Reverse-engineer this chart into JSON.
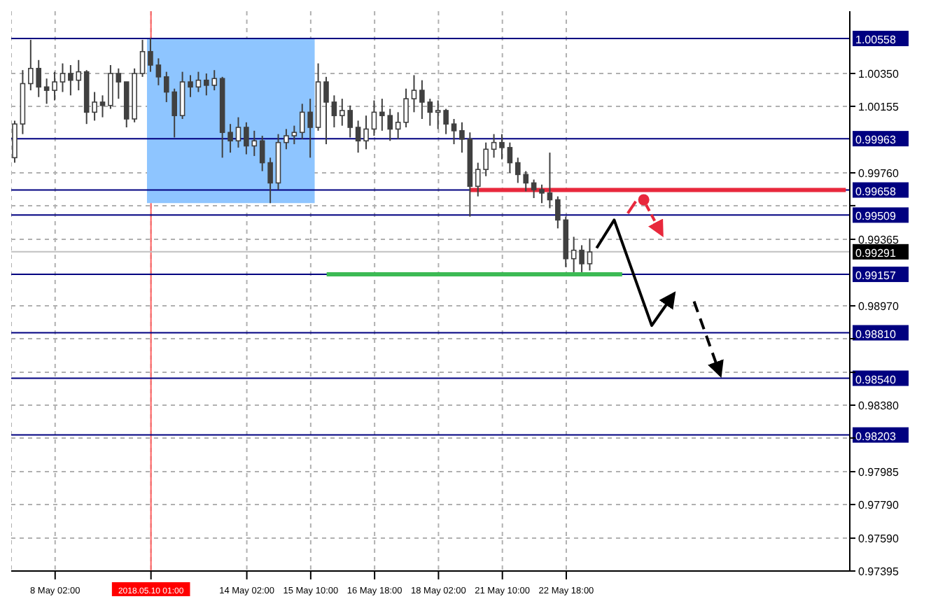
{
  "chart_data": {
    "type": "candlestick",
    "color": "#404040",
    "categories": [
      null,
      null,
      null,
      null,
      null,
      "8 May 02:00",
      null,
      null,
      null,
      null,
      null,
      null,
      null,
      null,
      null,
      null,
      null,
      "2018.05.10 01:00",
      null,
      null,
      null,
      null,
      null,
      null,
      null,
      null,
      null,
      null,
      null,
      "14 May 02:00",
      null,
      null,
      null,
      null,
      null,
      null,
      null,
      "15 May 10:00",
      null,
      null,
      null,
      null,
      null,
      null,
      null,
      "16 May 18:00",
      null,
      null,
      null,
      null,
      null,
      null,
      null,
      "18 May 02:00",
      null,
      null,
      null,
      null,
      null,
      null,
      null,
      "21 May 10:00",
      null,
      null,
      null,
      null,
      null,
      null,
      null,
      "22 May 18:00",
      null,
      null,
      null,
      null,
      null,
      null,
      null,
      null,
      null,
      null,
      null,
      null,
      null,
      null,
      null,
      null,
      null,
      null,
      null,
      null,
      null,
      null,
      null,
      null,
      null,
      null,
      null,
      null,
      null,
      null,
      null,
      null,
      null,
      null,
      null
    ],
    "ohlc": [
      [
        0.9985,
        1.0007,
        0.9982,
        1.0005
      ],
      [
        1.0005,
        1.0037,
        0.9999,
        1.0029
      ],
      [
        1.0029,
        1.0055,
        1.0025,
        1.0038
      ],
      [
        1.0038,
        1.0043,
        1.0021,
        1.0027
      ],
      [
        1.0027,
        1.0032,
        1.0017,
        1.0025
      ],
      [
        1.0025,
        1.0036,
        1.0019,
        1.003
      ],
      [
        1.003,
        1.0041,
        1.0024,
        1.0035
      ],
      [
        1.0035,
        1.004,
        1.0022,
        1.0031
      ],
      [
        1.0031,
        1.0043,
        1.0025,
        1.0036
      ],
      [
        1.0036,
        1.0037,
        1.0005,
        1.0012
      ],
      [
        1.0012,
        1.0024,
        1.0007,
        1.0018
      ],
      [
        1.0018,
        1.0022,
        1.0009,
        1.0016
      ],
      [
        1.0016,
        1.004,
        1.0014,
        1.0035
      ],
      [
        1.0035,
        1.0038,
        1.002,
        1.003
      ],
      [
        1.003,
        1.003,
        1.0003,
        1.0008
      ],
      [
        1.0008,
        1.0038,
        1.0006,
        1.0035
      ],
      [
        1.0035,
        1.0055,
        1.0033,
        1.0048
      ],
      [
        1.0048,
        1.0056,
        1.0036,
        1.004
      ],
      [
        1.004,
        1.0044,
        1.0028,
        1.0033
      ],
      [
        1.0033,
        1.0036,
        1.0018,
        1.0024
      ],
      [
        1.0024,
        1.0026,
        0.9997,
        1.001
      ],
      [
        1.001,
        1.0036,
        1.0008,
        1.003
      ],
      [
        1.003,
        1.0034,
        1.0021,
        1.0027
      ],
      [
        1.0027,
        1.0036,
        1.0024,
        1.0031
      ],
      [
        1.0031,
        1.0035,
        1.0022,
        1.0028
      ],
      [
        1.0028,
        1.0037,
        1.0025,
        1.0032
      ],
      [
        1.0032,
        1.0033,
        0.9985,
        1.0
      ],
      [
        1.0,
        1.0005,
        0.9988,
        0.9995
      ],
      [
        0.9995,
        1.0009,
        0.9991,
        1.0003
      ],
      [
        1.0003,
        1.0006,
        0.9987,
        0.9992
      ],
      [
        0.9992,
        1.0001,
        0.9986,
        0.9995
      ],
      [
        0.9995,
        0.9998,
        0.9977,
        0.9982
      ],
      [
        0.9982,
        0.9985,
        0.9958,
        0.997
      ],
      [
        0.997,
        0.9999,
        0.9966,
        0.9994
      ],
      [
        0.9994,
        1.0002,
        0.999,
        0.9998
      ],
      [
        0.9998,
        1.0004,
        0.9993,
        1.0
      ],
      [
        1.0,
        1.0017,
        0.9996,
        1.0012
      ],
      [
        1.0012,
        1.002,
        0.9985,
        1.0003
      ],
      [
        1.0003,
        1.0041,
        1.0001,
        1.003
      ],
      [
        1.003,
        1.0033,
        0.9993,
        1.0018
      ],
      [
        1.0018,
        1.0022,
        1.0003,
        1.001
      ],
      [
        1.001,
        1.002,
        1.0004,
        1.0013
      ],
      [
        1.0013,
        1.0016,
        0.9997,
        1.0003
      ],
      [
        1.0003,
        1.0007,
        0.9988,
        0.9995
      ],
      [
        0.9995,
        1.001,
        0.999,
        1.0002
      ],
      [
        1.0002,
        1.0019,
        0.9998,
        1.0012
      ],
      [
        1.0012,
        1.002,
        1.0001,
        1.001
      ],
      [
        1.001,
        1.0014,
        0.9995,
        1.0002
      ],
      [
        1.0002,
        1.0012,
        0.9996,
        1.0006
      ],
      [
        1.0006,
        1.0026,
        1.0003,
        1.002
      ],
      [
        1.002,
        1.0034,
        1.0012,
        1.0025
      ],
      [
        1.0025,
        1.0031,
        1.0008,
        1.0018
      ],
      [
        1.0018,
        1.002,
        1.0004,
        1.0012
      ],
      [
        1.0012,
        1.0019,
        1.0002,
        1.0013
      ],
      [
        1.0013,
        1.0014,
        0.9999,
        1.0005
      ],
      [
        1.0005,
        1.0008,
        0.9993,
        1.0001
      ],
      [
        1.0001,
        1.0006,
        0.9988,
        0.9996
      ],
      [
        0.9996,
        1.0,
        0.995,
        0.9968
      ],
      [
        0.9968,
        0.9982,
        0.9962,
        0.9978
      ],
      [
        0.9978,
        0.9994,
        0.9974,
        0.999
      ],
      [
        0.999,
        0.9999,
        0.9985,
        0.9994
      ],
      [
        0.9994,
        0.9999,
        0.9984,
        0.9991
      ],
      [
        0.9991,
        0.9994,
        0.9976,
        0.9982
      ],
      [
        0.9982,
        0.9985,
        0.997,
        0.9975
      ],
      [
        0.9975,
        0.9977,
        0.9965,
        0.997
      ],
      [
        0.997,
        0.9972,
        0.9961,
        0.9966
      ],
      [
        0.9966,
        0.9969,
        0.9958,
        0.9964
      ],
      [
        0.9964,
        0.9988,
        0.9955,
        0.996
      ],
      [
        0.996,
        0.9962,
        0.9943,
        0.9948
      ],
      [
        0.9948,
        0.995,
        0.992,
        0.9925
      ],
      [
        0.9925,
        0.9938,
        0.9917,
        0.993
      ],
      [
        0.993,
        0.9933,
        0.9917,
        0.9922
      ],
      [
        0.9922,
        0.9937,
        0.9918,
        0.9929
      ],
      null,
      null,
      null,
      null,
      null,
      null,
      null,
      null,
      null,
      null,
      null,
      null,
      null,
      null,
      null,
      null,
      null,
      null,
      null,
      null,
      null,
      null,
      null,
      null,
      null,
      null,
      null,
      null,
      null,
      null,
      null,
      null
    ],
    "series": [
      {
        "type": "line",
        "color": "#e8283c",
        "values": [
          null,
          null,
          null,
          null,
          null,
          null,
          null,
          null,
          null,
          null,
          null,
          null,
          null,
          null,
          null,
          null,
          null,
          null,
          null,
          null,
          null,
          null,
          null,
          null,
          null,
          null,
          null,
          null,
          null,
          null,
          null,
          null,
          null,
          null,
          null,
          null,
          null,
          null,
          null,
          null,
          null,
          null,
          null,
          null,
          null,
          null,
          null,
          null,
          null,
          null,
          null,
          null,
          null,
          null,
          null,
          null,
          null,
          0.99658,
          0.99658,
          0.99658,
          0.99658,
          0.99658,
          0.99658,
          0.99658,
          0.99658,
          0.99658,
          0.99658,
          0.99658,
          0.99658,
          0.99658,
          0.99658,
          0.99658,
          0.99658,
          0.99658,
          0.99658,
          0.99658,
          0.99658,
          0.99658,
          0.99658,
          0.99658,
          0.99658,
          0.99658,
          0.99658,
          0.99658,
          0.99658,
          0.99658,
          0.99658,
          0.99658,
          0.99658,
          0.99658,
          0.99658,
          0.99658,
          0.99658,
          0.99658,
          0.99658,
          0.99658,
          0.99658,
          0.99658,
          0.99658,
          0.99658,
          0.99658,
          0.99658,
          0.99658,
          0.99658,
          0.99658
        ]
      },
      {
        "type": "line",
        "color": "#3cba54",
        "values": [
          null,
          null,
          null,
          null,
          null,
          null,
          null,
          null,
          null,
          null,
          null,
          null,
          null,
          null,
          null,
          null,
          null,
          null,
          null,
          null,
          null,
          null,
          null,
          null,
          null,
          null,
          null,
          null,
          null,
          null,
          null,
          null,
          null,
          null,
          null,
          null,
          null,
          null,
          null,
          0.99157,
          0.99157,
          0.99157,
          0.99157,
          0.99157,
          0.99157,
          0.99157,
          0.99157,
          0.99157,
          0.99157,
          0.99157,
          0.99157,
          0.99157,
          0.99157,
          0.99157,
          0.99157,
          0.99157,
          0.99157,
          0.99157,
          0.99157,
          0.99157,
          0.99157,
          0.99157,
          0.99157,
          0.99157,
          0.99157,
          0.99157,
          0.99157,
          0.99157,
          0.99157,
          0.99157,
          0.99157,
          0.99157,
          0.99157,
          0.99157,
          0.99157,
          0.99157,
          0.99157,
          null,
          null,
          null,
          null,
          null,
          null,
          null,
          null,
          null,
          null,
          null,
          null,
          null,
          null,
          null,
          null,
          null,
          null,
          null,
          null,
          null,
          null,
          null,
          null,
          null,
          null,
          null,
          null
        ]
      }
    ],
    "ylim": [
      0.97395,
      1.0072
    ],
    "yticks": [
      {
        "value": 1.0035,
        "label": "1.00350"
      },
      1.00155,
      {
        "value": 0.9976,
        "label": "0.99760"
      },
      {
        "value": 0.99565,
        "label": null
      },
      0.99365,
      {
        "value": 0.9897,
        "label": "0.98970"
      },
      {
        "value": 0.98775,
        "label": null
      },
      {
        "value": 0.98575,
        "label": null
      },
      {
        "value": 0.9838,
        "label": "0.98380"
      },
      {
        "value": 0.98185,
        "label": null
      },
      0.97985,
      {
        "value": 0.9779,
        "label": "0.97790"
      },
      {
        "value": 0.9759,
        "label": "0.97590"
      },
      0.97395
    ],
    "ref_lines": [
      {
        "axis": "y",
        "value": 1.00558,
        "label": "1.00558",
        "color": "#000080"
      },
      {
        "axis": "y",
        "value": 0.99963,
        "label": "0.99963",
        "color": "#000080"
      },
      {
        "axis": "y",
        "value": 0.99658,
        "label": "0.99658",
        "color": "#000080"
      },
      {
        "axis": "y",
        "value": 0.99509,
        "label": "0.99509",
        "color": "#000080"
      },
      {
        "axis": "y",
        "value": 0.99291,
        "label": "0.99291",
        "color": "#c0c0c0"
      },
      {
        "axis": "y",
        "value": 0.99157,
        "label": "0.99157",
        "color": "#000080"
      },
      {
        "axis": "y",
        "value": 0.9881,
        "label": "0.98810",
        "color": "#000080"
      },
      {
        "axis": "y",
        "value": 0.9854,
        "label": "0.98540",
        "color": "#000080"
      },
      {
        "axis": "y",
        "value": 0.98203,
        "label": "0.98203",
        "color": "#000080"
      },
      {
        "axis": "x",
        "value": "2018.05.10 01:00",
        "color": "#ff6060"
      }
    ],
    "bands": [
      {
        "axis": "x",
        "from": "2018.05.10 01:00",
        "to": "15 May 10:00",
        "color": "#8ec5ff"
      }
    ],
    "grid": true
  }
}
